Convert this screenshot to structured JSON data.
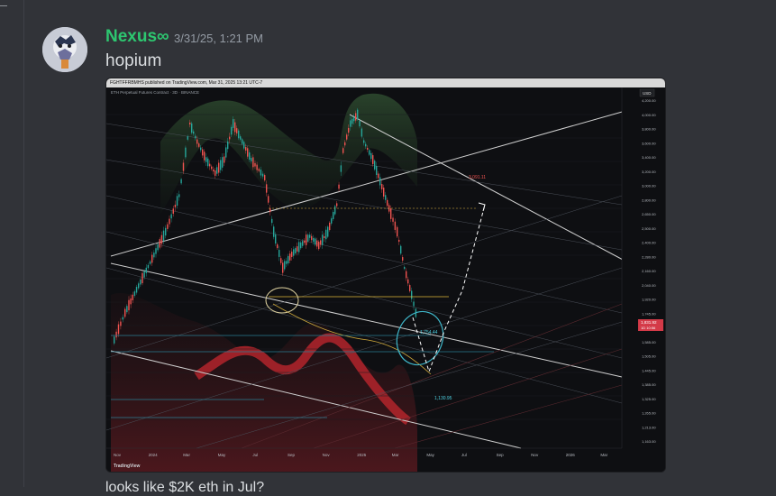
{
  "author": {
    "name": "Nexus∞",
    "name_color": "#2dc770"
  },
  "timestamp": "3/31/25, 1:21 PM",
  "message": "hopium",
  "attachment": {
    "publisher": "FGHTFFRBMHS published on TradingView.com, Mar 31, 2025 13:21 UTC-7",
    "symbol_line": "ETH Perpetual Futures Contract · 3D · BINANCE",
    "currency": "USD",
    "watermark": "TradingView",
    "price_labels": [
      "4,200.00",
      "4,000.00",
      "3,800.00",
      "3,600.00",
      "3,400.00",
      "3,200.00",
      "3,000.00",
      "2,800.00",
      "2,650.00",
      "2,500.00",
      "2,400.00",
      "2,280.00",
      "2,160.00",
      "2,040.00",
      "1,920.00",
      "1,745.00",
      "1,665.00",
      "1,585.00",
      "1,505.00",
      "1,445.00",
      "1,385.00",
      "1,325.00",
      "1,265.00",
      "1,213.00",
      "1,163.00"
    ],
    "current_price": "1,831.92",
    "current_countdown": "1D 10:56",
    "time_labels": [
      "Nov",
      "2024",
      "Mar",
      "May",
      "Jul",
      "Sep",
      "Nov",
      "2025",
      "Mar",
      "May",
      "Jul",
      "Sep",
      "Nov",
      "2026",
      "Mar"
    ],
    "annotations": {
      "target": "3,091.11",
      "mid": "1,754.44",
      "low": "1,130.95"
    },
    "colors": {
      "up": "#26a69a",
      "down": "#ef5350",
      "target_text": "#ef5350",
      "level_text": "#4dd0e1",
      "yellow": "#e0b83a"
    }
  },
  "next_message_partial": "looks like $2K eth in Jul?"
}
